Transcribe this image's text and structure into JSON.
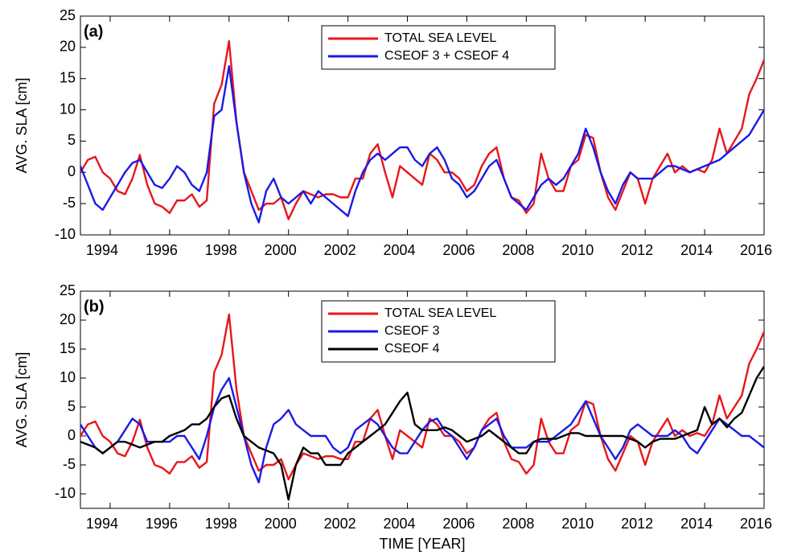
{
  "chart_data": [
    {
      "type": "line",
      "panel_label": "(a)",
      "y_label": "AVG. SLA [cm]",
      "legend": "upper center",
      "xlim": [
        1993,
        2016
      ],
      "xticks": [
        1994,
        1996,
        1998,
        2000,
        2002,
        2004,
        2006,
        2008,
        2010,
        2012,
        2014,
        2016
      ],
      "ylim": [
        -10,
        25
      ],
      "yticks": [
        -10,
        -5,
        0,
        5,
        10,
        15,
        20,
        25
      ],
      "x": [
        1993,
        1993.25,
        1993.5,
        1993.75,
        1994,
        1994.25,
        1994.5,
        1994.75,
        1995,
        1995.25,
        1995.5,
        1995.75,
        1996,
        1996.25,
        1996.5,
        1996.75,
        1997,
        1997.25,
        1997.5,
        1997.75,
        1998,
        1998.25,
        1998.5,
        1998.75,
        1999,
        1999.25,
        1999.5,
        1999.75,
        2000,
        2000.25,
        2000.5,
        2000.75,
        2001,
        2001.25,
        2001.5,
        2001.75,
        2002,
        2002.25,
        2002.5,
        2002.75,
        2003,
        2003.25,
        2003.5,
        2003.75,
        2004,
        2004.25,
        2004.5,
        2004.75,
        2005,
        2005.25,
        2005.5,
        2005.75,
        2006,
        2006.25,
        2006.5,
        2006.75,
        2007,
        2007.25,
        2007.5,
        2007.75,
        2008,
        2008.25,
        2008.5,
        2008.75,
        2009,
        2009.25,
        2009.5,
        2009.75,
        2010,
        2010.25,
        2010.5,
        2010.75,
        2011,
        2011.25,
        2011.5,
        2011.75,
        2012,
        2012.25,
        2012.5,
        2012.75,
        2013,
        2013.25,
        2013.5,
        2013.75,
        2014,
        2014.25,
        2014.5,
        2014.75,
        2015,
        2015.25,
        2015.5,
        2015.75,
        2016
      ],
      "series": [
        {
          "name": "TOTAL SEA LEVEL",
          "color": "#e8161b",
          "values": [
            0,
            2,
            2.5,
            0,
            -1,
            -3,
            -3.5,
            -1,
            2.8,
            -2,
            -5,
            -5.5,
            -6.5,
            -4.5,
            -4.5,
            -3.5,
            -5.5,
            -4.5,
            11,
            14,
            21,
            8,
            0,
            -3,
            -6,
            -5,
            -5,
            -4,
            -7.5,
            -5,
            -3,
            -3.5,
            -4,
            -3.5,
            -3.5,
            -4,
            -4,
            -1,
            -1,
            3,
            4.5,
            0,
            -4,
            1,
            0,
            -1,
            -2,
            3,
            2,
            0,
            0,
            -1,
            -3,
            -2,
            1,
            3,
            4,
            -1,
            -4,
            -4.5,
            -6.5,
            -5,
            3,
            -1,
            -3,
            -3,
            1,
            2,
            6,
            5.5,
            0,
            -4,
            -6,
            -3,
            0,
            -1,
            -5,
            -1,
            1,
            3,
            0,
            1,
            0,
            0.5,
            0,
            2,
            7,
            3,
            5,
            7,
            12.5,
            15,
            18
          ]
        },
        {
          "name": "CSEOF 3 + CSEOF 4",
          "color": "#1a1ae6",
          "values": [
            1,
            -2,
            -5,
            -6,
            -4,
            -2,
            0,
            1.5,
            2,
            0,
            -2,
            -2.5,
            -1,
            1,
            0,
            -2,
            -3,
            0,
            9,
            10,
            17,
            8,
            0,
            -5,
            -8,
            -3,
            -1,
            -4,
            -5,
            -4,
            -3,
            -5,
            -3,
            -4,
            -5,
            -6,
            -7,
            -3,
            0,
            2,
            3,
            2,
            3,
            4,
            4,
            2,
            1,
            3,
            4,
            2,
            -1,
            -2,
            -4,
            -3,
            -1,
            1,
            2,
            -1,
            -4,
            -5,
            -6,
            -4,
            -2,
            -1,
            -2,
            -1,
            1,
            3,
            7,
            4,
            0,
            -3,
            -5,
            -2,
            0,
            -1,
            -1,
            -1,
            0,
            1,
            1,
            0.5,
            0,
            0.5,
            1,
            1.5,
            2,
            3,
            4,
            5,
            6,
            8,
            10
          ]
        }
      ]
    },
    {
      "type": "line",
      "panel_label": "(b)",
      "y_label": "AVG. SLA [cm]",
      "x_label": "TIME [YEAR]",
      "legend": "upper center",
      "xlim": [
        1993,
        2016
      ],
      "xticks": [
        1994,
        1996,
        1998,
        2000,
        2002,
        2004,
        2006,
        2008,
        2010,
        2012,
        2014,
        2016
      ],
      "ylim": [
        -12.5,
        25
      ],
      "yticks": [
        -10,
        -5,
        0,
        5,
        10,
        15,
        20,
        25
      ],
      "x": [
        1993,
        1993.25,
        1993.5,
        1993.75,
        1994,
        1994.25,
        1994.5,
        1994.75,
        1995,
        1995.25,
        1995.5,
        1995.75,
        1996,
        1996.25,
        1996.5,
        1996.75,
        1997,
        1997.25,
        1997.5,
        1997.75,
        1998,
        1998.25,
        1998.5,
        1998.75,
        1999,
        1999.25,
        1999.5,
        1999.75,
        2000,
        2000.25,
        2000.5,
        2000.75,
        2001,
        2001.25,
        2001.5,
        2001.75,
        2002,
        2002.25,
        2002.5,
        2002.75,
        2003,
        2003.25,
        2003.5,
        2003.75,
        2004,
        2004.25,
        2004.5,
        2004.75,
        2005,
        2005.25,
        2005.5,
        2005.75,
        2006,
        2006.25,
        2006.5,
        2006.75,
        2007,
        2007.25,
        2007.5,
        2007.75,
        2008,
        2008.25,
        2008.5,
        2008.75,
        2009,
        2009.25,
        2009.5,
        2009.75,
        2010,
        2010.25,
        2010.5,
        2010.75,
        2011,
        2011.25,
        2011.5,
        2011.75,
        2012,
        2012.25,
        2012.5,
        2012.75,
        2013,
        2013.25,
        2013.5,
        2013.75,
        2014,
        2014.25,
        2014.5,
        2014.75,
        2015,
        2015.25,
        2015.5,
        2015.75,
        2016
      ],
      "series": [
        {
          "name": "TOTAL SEA LEVEL",
          "color": "#e8161b",
          "values": [
            0,
            2,
            2.5,
            0,
            -1,
            -3,
            -3.5,
            -1,
            2.8,
            -2,
            -5,
            -5.5,
            -6.5,
            -4.5,
            -4.5,
            -3.5,
            -5.5,
            -4.5,
            11,
            14,
            21,
            8,
            0,
            -3,
            -6,
            -5,
            -5,
            -4,
            -7.5,
            -5,
            -3,
            -3.5,
            -4,
            -3.5,
            -3.5,
            -4,
            -4,
            -1,
            -1,
            3,
            4.5,
            0,
            -4,
            1,
            0,
            -1,
            -2,
            3,
            2,
            0,
            0,
            -1,
            -3,
            -2,
            1,
            3,
            4,
            -1,
            -4,
            -4.5,
            -6.5,
            -5,
            3,
            -1,
            -3,
            -3,
            1,
            2,
            6,
            5.5,
            0,
            -4,
            -6,
            -3,
            0,
            -1,
            -5,
            -1,
            1,
            3,
            0,
            1,
            0,
            0.5,
            0,
            2,
            7,
            3,
            5,
            7,
            12.5,
            15,
            18
          ]
        },
        {
          "name": "CSEOF 3",
          "color": "#1a1ae6",
          "values": [
            2,
            0,
            -2,
            -3,
            -2,
            -1,
            1,
            3,
            2,
            -1,
            -1,
            -1,
            -1,
            0,
            0,
            -2,
            -4,
            0,
            5,
            8,
            10,
            5,
            0,
            -5,
            -8,
            -2,
            2,
            3,
            4.5,
            2,
            1,
            0,
            0,
            0,
            -2,
            -3,
            -2,
            1,
            2,
            3,
            2,
            0,
            -2,
            -3,
            -3,
            -1,
            1,
            2.5,
            3,
            1,
            0,
            -2,
            -4,
            -2,
            1,
            2,
            3,
            0,
            -2,
            -2,
            -2,
            -1,
            -1,
            -1,
            0,
            1,
            2,
            4,
            6,
            3,
            0,
            -2,
            -4,
            -2,
            1,
            2,
            1,
            0,
            0,
            0,
            1,
            0,
            -2,
            -3,
            -1,
            1,
            3,
            2,
            1,
            0,
            0,
            -1,
            -2
          ]
        },
        {
          "name": "CSEOF 4",
          "color": "#000000",
          "values": [
            -1,
            -1.5,
            -2,
            -3,
            -2,
            -1,
            -1,
            -1.5,
            -2,
            -1.5,
            -1,
            -1,
            0,
            0.5,
            1,
            2,
            2,
            3,
            5,
            6.5,
            7,
            3,
            0,
            -1,
            -2,
            -2.5,
            -3,
            -5,
            -11,
            -5,
            -2,
            -3,
            -3,
            -5,
            -5,
            -5,
            -3,
            -2,
            -1,
            0,
            1,
            2,
            4,
            6,
            7.5,
            2,
            1,
            1,
            1,
            1.5,
            1,
            0,
            -1,
            -0.5,
            0,
            1,
            0,
            -1,
            -2,
            -3,
            -3,
            -1,
            -0.5,
            -0.5,
            -0.5,
            0,
            0.5,
            0.5,
            0,
            0,
            0,
            0,
            0,
            0,
            -0.5,
            -1,
            -2,
            -1,
            -0.5,
            -0.5,
            -0.5,
            0,
            0.5,
            1,
            5,
            2,
            3,
            1.5,
            3,
            4,
            7,
            10,
            12
          ]
        }
      ]
    }
  ]
}
